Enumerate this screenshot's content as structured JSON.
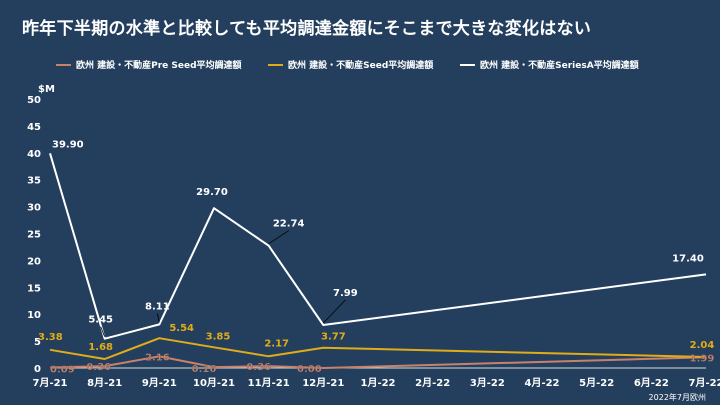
{
  "title": "昨年下半期の水準と比較しても平均調達金額にそこまで大きな変化はない",
  "footnote": "2022年7月欧州",
  "colors": {
    "background": "#243f5e",
    "preseed": "#c9826a",
    "seed": "#e0ac18",
    "seriesa": "#ffffff"
  },
  "chart_data": {
    "type": "line",
    "ylabel": "$M",
    "ylim": [
      0,
      50
    ],
    "yticks": [
      0,
      5,
      10,
      15,
      20,
      25,
      30,
      35,
      40,
      45,
      50
    ],
    "categories": [
      "7月-21",
      "8月-21",
      "9月-21",
      "10月-21",
      "11月-21",
      "12月-21",
      "1月-22",
      "2月-22",
      "3月-22",
      "4月-22",
      "5月-22",
      "6月-22",
      "7月-22"
    ],
    "legend_position": "top",
    "grid": false,
    "series": [
      {
        "name": "欧州 建設・不動産Pre Seed平均調達額",
        "color": "#c9826a",
        "points": [
          [
            0,
            0.09
          ],
          [
            1,
            0.36
          ],
          [
            2,
            2.16
          ],
          [
            3,
            0.16
          ],
          [
            4,
            0.36
          ],
          [
            5,
            0.0
          ],
          [
            12,
            1.99
          ]
        ],
        "labels": [
          "0.09",
          "0.36",
          "2.16",
          "0.16",
          "0.36",
          "0.00",
          "1.99"
        ]
      },
      {
        "name": "欧州 建設・不動産Seed平均調達額",
        "color": "#e0ac18",
        "points": [
          [
            0,
            3.38
          ],
          [
            1,
            1.68
          ],
          [
            2,
            5.54
          ],
          [
            3,
            3.85
          ],
          [
            4,
            2.17
          ],
          [
            5,
            3.77
          ],
          [
            12,
            2.04
          ]
        ],
        "labels": [
          "3.38",
          "1.68",
          "5.54",
          "3.85",
          "2.17",
          "3.77",
          "2.04"
        ]
      },
      {
        "name": "欧州 建設・不動産SeriesA平均調達額",
        "color": "#ffffff",
        "points": [
          [
            0,
            39.9
          ],
          [
            1,
            5.45
          ],
          [
            2,
            8.11
          ],
          [
            3,
            29.7
          ],
          [
            4,
            22.74
          ],
          [
            5,
            7.99
          ],
          [
            12,
            17.4
          ]
        ],
        "labels": [
          "39.90",
          "5.45",
          "8.11",
          "29.70",
          "22.74",
          "7.99",
          "17.40"
        ]
      }
    ]
  }
}
